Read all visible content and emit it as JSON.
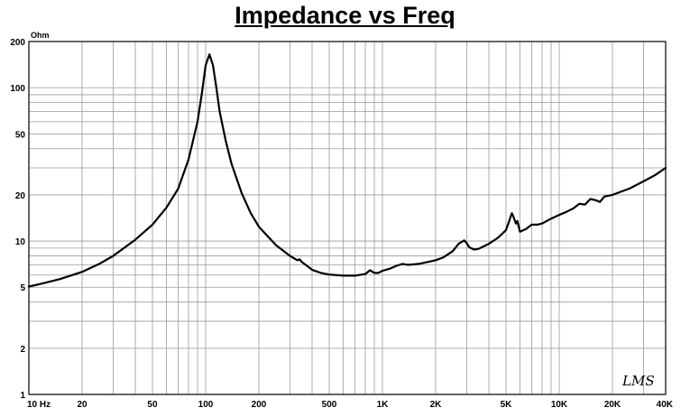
{
  "chart_data": {
    "type": "line",
    "title": "Impedance vs Freq",
    "ylabel_unit": "Ohm",
    "x_scale": "log",
    "y_scale": "log",
    "xlim": [
      10,
      40000
    ],
    "ylim": [
      1,
      200
    ],
    "grid": true,
    "x_ticks": [
      {
        "value": 10,
        "label": "10  Hz"
      },
      {
        "value": 20,
        "label": "20"
      },
      {
        "value": 50,
        "label": "50"
      },
      {
        "value": 100,
        "label": "100"
      },
      {
        "value": 200,
        "label": "200"
      },
      {
        "value": 500,
        "label": "500"
      },
      {
        "value": 1000,
        "label": "1K"
      },
      {
        "value": 2000,
        "label": "2K"
      },
      {
        "value": 5000,
        "label": "5K"
      },
      {
        "value": 10000,
        "label": "10K"
      },
      {
        "value": 20000,
        "label": "20K"
      },
      {
        "value": 40000,
        "label": "40K"
      }
    ],
    "y_ticks": [
      {
        "value": 200,
        "label": "200"
      },
      {
        "value": 100,
        "label": "100"
      },
      {
        "value": 50,
        "label": "50"
      },
      {
        "value": 20,
        "label": "20"
      },
      {
        "value": 10,
        "label": "10"
      },
      {
        "value": 5,
        "label": "5"
      },
      {
        "value": 2,
        "label": "2"
      },
      {
        "value": 1,
        "label": "1"
      }
    ],
    "series": [
      {
        "color": "#000000",
        "x": [
          10,
          12,
          15,
          20,
          25,
          30,
          40,
          50,
          60,
          70,
          80,
          90,
          95,
          100,
          105,
          110,
          115,
          120,
          130,
          140,
          160,
          180,
          200,
          250,
          300,
          330,
          340,
          350,
          380,
          400,
          450,
          500,
          600,
          700,
          800,
          850,
          900,
          950,
          1000,
          1100,
          1200,
          1300,
          1400,
          1500,
          1600,
          1800,
          2000,
          2200,
          2500,
          2700,
          2900,
          3000,
          3100,
          3300,
          3500,
          4000,
          4500,
          5000,
          5200,
          5400,
          5500,
          5700,
          5800,
          6000,
          6500,
          7000,
          7500,
          8000,
          9000,
          10000,
          11000,
          12000,
          13000,
          14000,
          15000,
          16000,
          17000,
          18000,
          20000,
          25000,
          30000,
          35000,
          40000
        ],
        "y": [
          5.05,
          5.3,
          5.65,
          6.3,
          7.1,
          8.0,
          10.2,
          12.8,
          16.5,
          22,
          34,
          60,
          90,
          140,
          165,
          140,
          100,
          70,
          45,
          32,
          20.5,
          15.2,
          12.4,
          9.4,
          8.0,
          7.5,
          7.6,
          7.3,
          6.8,
          6.5,
          6.2,
          6.05,
          5.95,
          5.95,
          6.1,
          6.45,
          6.2,
          6.2,
          6.4,
          6.6,
          6.9,
          7.1,
          7.0,
          7.05,
          7.1,
          7.3,
          7.5,
          7.8,
          8.6,
          9.6,
          10.1,
          9.7,
          9.1,
          8.8,
          8.9,
          9.6,
          10.5,
          11.8,
          13.4,
          15.2,
          14.5,
          13.0,
          13.5,
          11.5,
          12.0,
          12.8,
          12.8,
          13.0,
          14.0,
          14.8,
          15.5,
          16.3,
          17.5,
          17.3,
          18.8,
          18.5,
          18.0,
          19.5,
          20.0,
          22.0,
          24.5,
          27.0,
          30.0
        ]
      }
    ]
  },
  "logo_text": "LMS"
}
